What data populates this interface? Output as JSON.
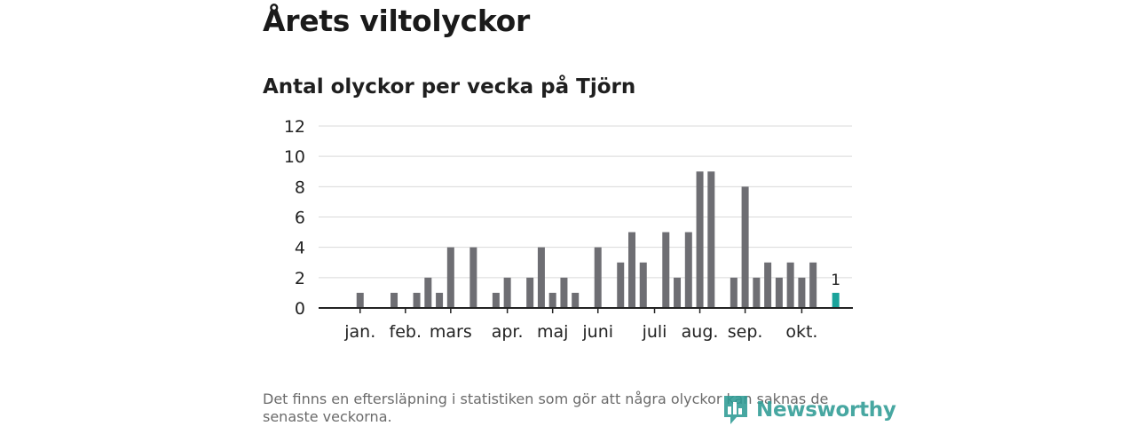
{
  "header": {
    "title": "Årets viltolyckor",
    "subtitle": "Antal olyckor per vecka på Tjörn"
  },
  "footer": {
    "note": "Det finns en eftersläpning i statistiken som gör att några olyckor kan saknas de senaste veckorna.",
    "brand": "Newsworthy"
  },
  "colors": {
    "bar": "#6e6e73",
    "highlight": "#1aa39b",
    "grid": "#d9d9d9",
    "axis": "#222222",
    "brand": "#2e9b95"
  },
  "chart_data": {
    "type": "bar",
    "title": "Antal olyckor per vecka på Tjörn",
    "xlabel": "",
    "ylabel": "",
    "ylim": [
      0,
      12
    ],
    "yticks": [
      0,
      2,
      4,
      6,
      8,
      10,
      12
    ],
    "grid": true,
    "weeks": [
      1,
      2,
      3,
      4,
      5,
      6,
      7,
      8,
      9,
      10,
      11,
      12,
      13,
      14,
      15,
      16,
      17,
      18,
      19,
      20,
      21,
      22,
      23,
      24,
      25,
      26,
      27,
      28,
      29,
      30,
      31,
      32,
      33,
      34,
      35,
      36,
      37,
      38,
      39,
      40,
      41,
      42,
      43,
      44,
      45,
      46,
      47
    ],
    "values": [
      0,
      1,
      0,
      0,
      1,
      0,
      1,
      2,
      1,
      4,
      0,
      4,
      0,
      1,
      2,
      0,
      2,
      4,
      1,
      2,
      1,
      0,
      4,
      0,
      3,
      5,
      3,
      0,
      5,
      2,
      5,
      9,
      9,
      0,
      2,
      8,
      2,
      3,
      2,
      3,
      2,
      3,
      0,
      1,
      0,
      0,
      0
    ],
    "highlight_index": 43,
    "highlight_label": "1",
    "month_labels": [
      {
        "label": "jan.",
        "week": 2
      },
      {
        "label": "feb.",
        "week": 6
      },
      {
        "label": "mars",
        "week": 10
      },
      {
        "label": "apr.",
        "week": 15
      },
      {
        "label": "maj",
        "week": 19
      },
      {
        "label": "juni",
        "week": 23
      },
      {
        "label": "juli",
        "week": 28
      },
      {
        "label": "aug.",
        "week": 32
      },
      {
        "label": "sep.",
        "week": 36
      },
      {
        "label": "okt.",
        "week": 41
      }
    ],
    "month_tick_weeks": [
      2,
      6,
      10,
      15,
      19,
      23,
      28,
      32,
      36,
      41
    ]
  }
}
